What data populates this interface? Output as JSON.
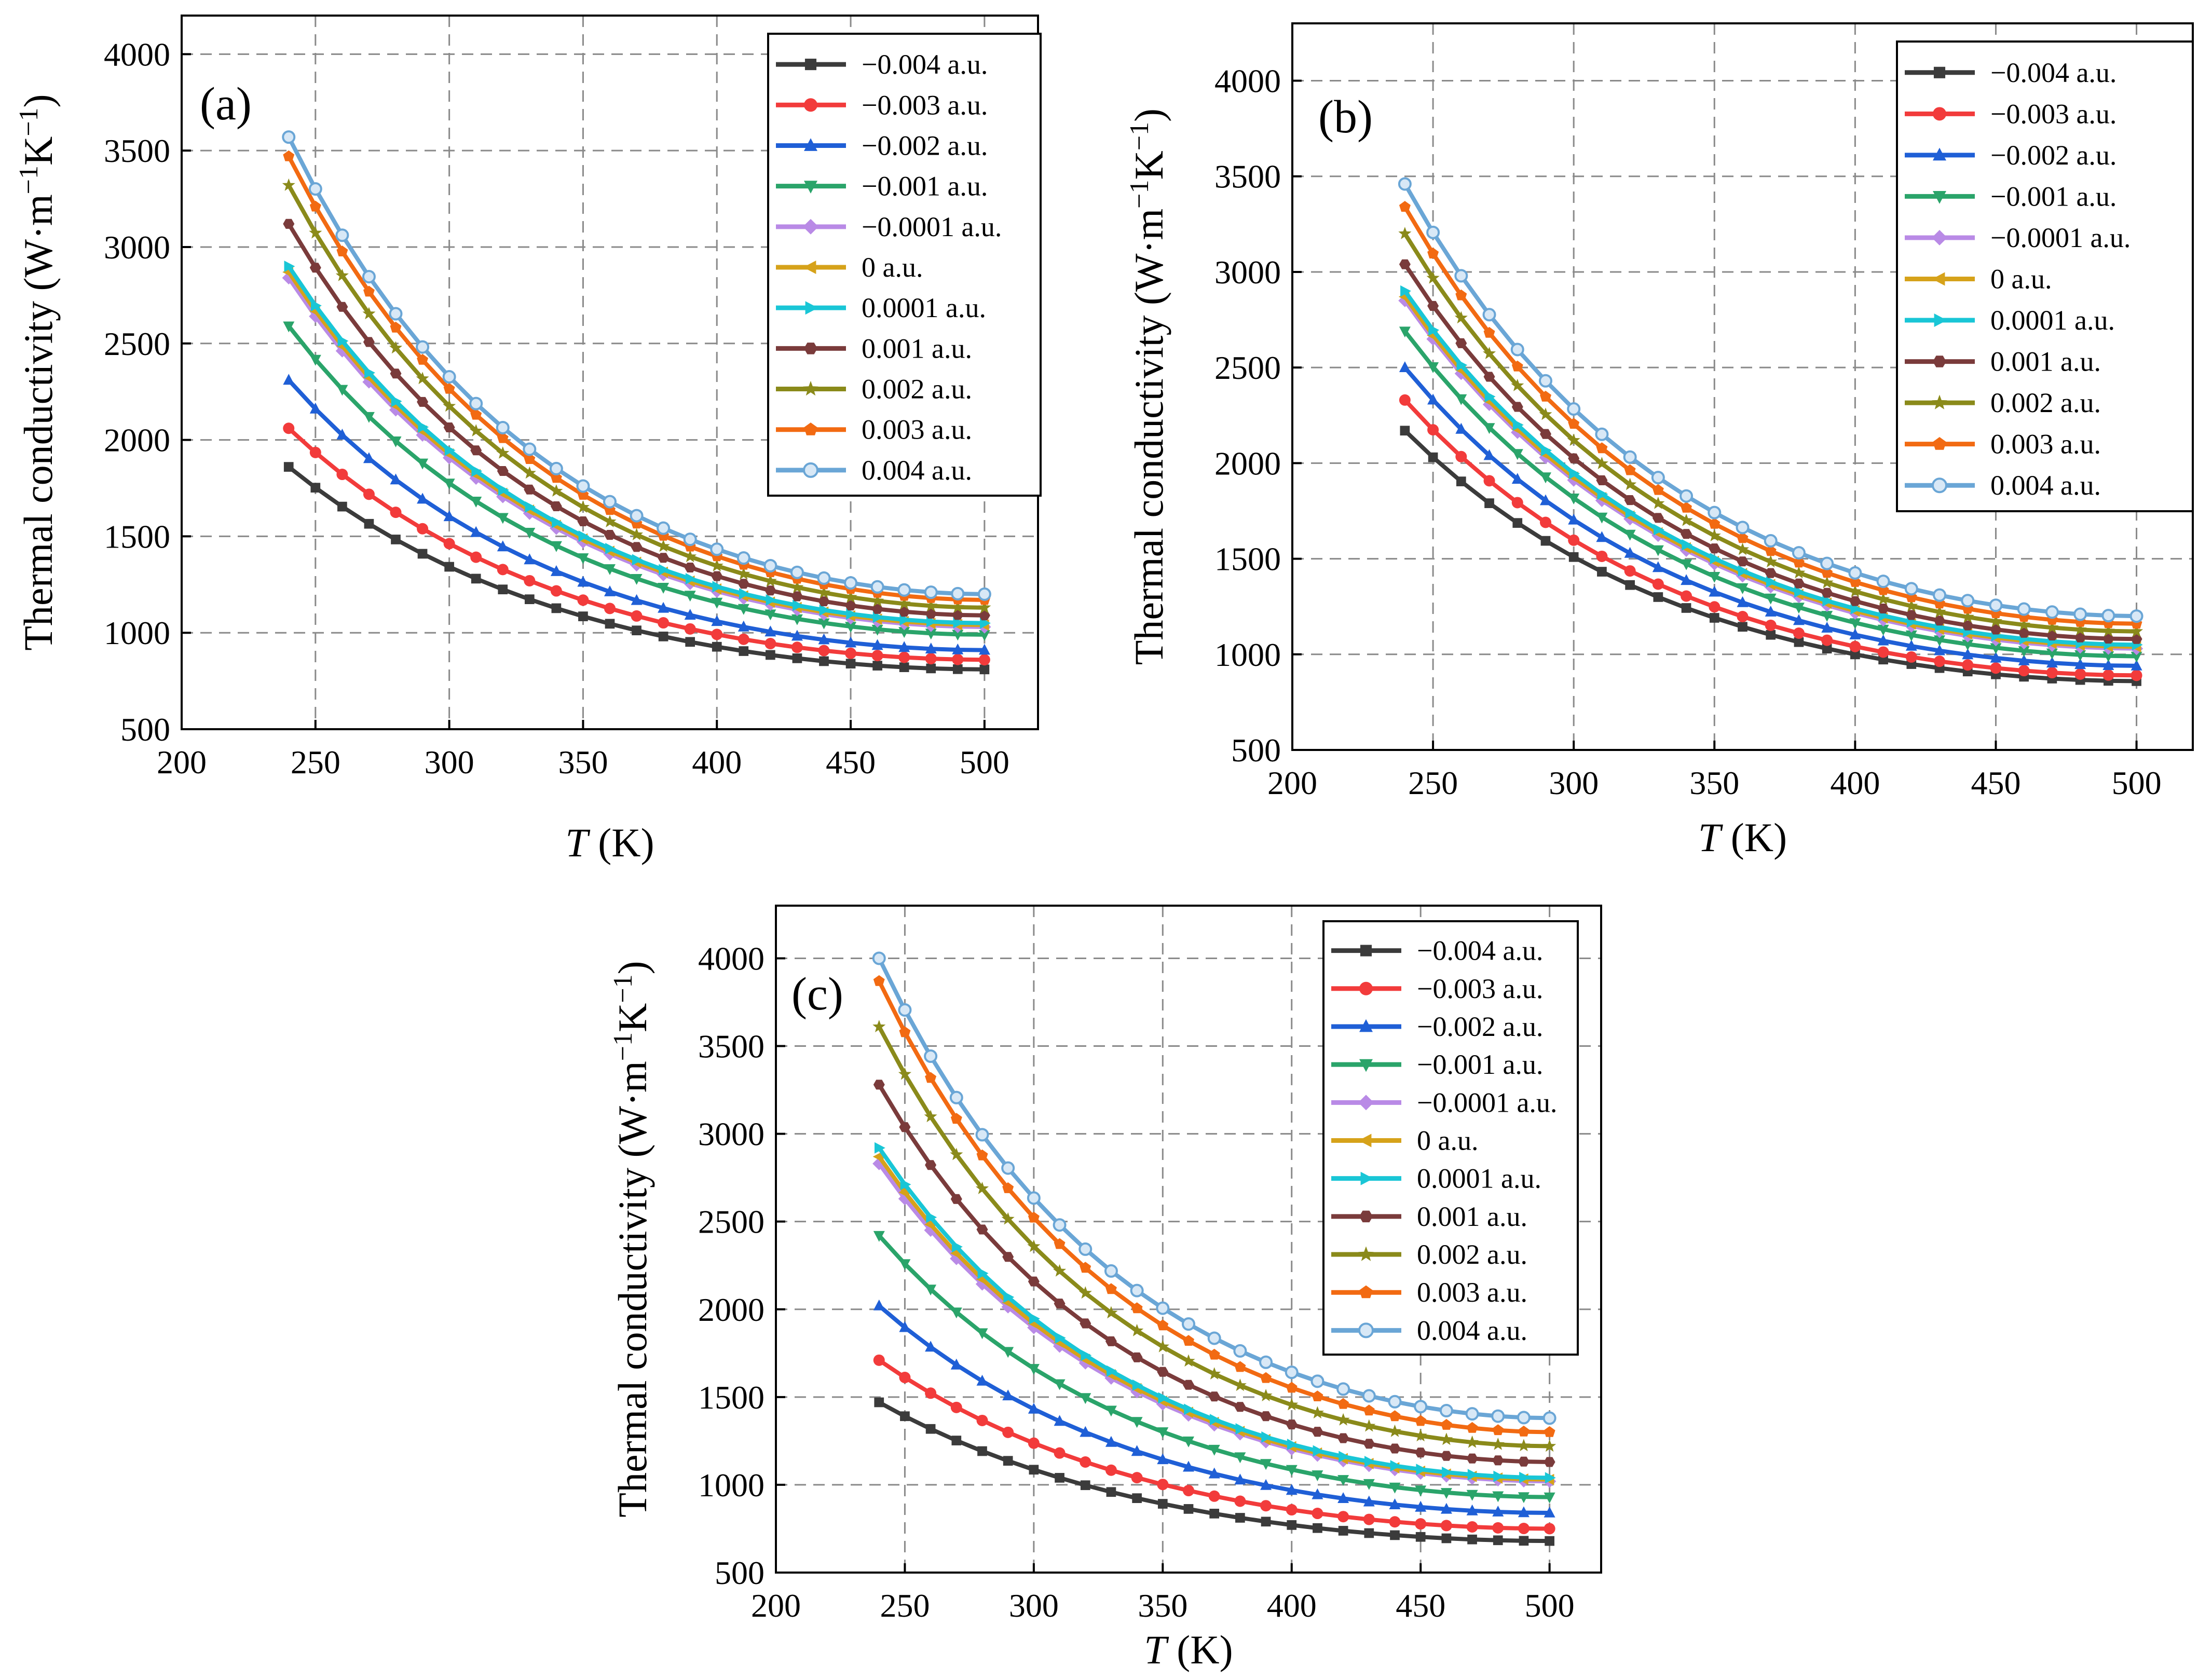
{
  "chart_data": [
    {
      "id": "a",
      "type": "line",
      "panel_label": "(a)",
      "xlabel": "T (K)",
      "xlabel_italic": "T",
      "xlabel_rest": " (K)",
      "ylabel": "Thermal conductivity (W·m⁻¹K⁻¹)",
      "ylabel_main": "Thermal conductivity (W·m",
      "ylabel_sup1": "−1",
      "ylabel_mid": "K",
      "ylabel_sup2": "−1",
      "ylabel_end": ")",
      "xlim": [
        200,
        520
      ],
      "ylim": [
        500,
        4200
      ],
      "xticks": [
        200,
        250,
        300,
        350,
        400,
        450,
        500
      ],
      "xtick_labels": [
        "200",
        "250",
        "300",
        "350",
        "400",
        "450",
        "500"
      ],
      "yticks": [
        500,
        1000,
        1500,
        2000,
        2500,
        3000,
        3500,
        4000
      ],
      "ytick_labels": [
        "500",
        "1000",
        "1500",
        "2000",
        "2500",
        "3000",
        "3500",
        "4000"
      ],
      "x_start": 240,
      "x_end": 500,
      "x_step": 10,
      "legend_position": "top-right",
      "series": [
        {
          "name": "−0.004 a.u.",
          "start": 1860,
          "end": 810
        },
        {
          "name": "−0.003 a.u.",
          "start": 2060,
          "end": 860
        },
        {
          "name": "−0.002 a.u.",
          "start": 2310,
          "end": 910
        },
        {
          "name": "−0.001 a.u.",
          "start": 2590,
          "end": 990
        },
        {
          "name": "−0.0001 a.u.",
          "start": 2840,
          "end": 1030
        },
        {
          "name": "0 a.u.",
          "start": 2870,
          "end": 1040
        },
        {
          "name": "0.0001 a.u.",
          "start": 2900,
          "end": 1050
        },
        {
          "name": "0.001 a.u.",
          "start": 3120,
          "end": 1090
        },
        {
          "name": "0.002 a.u.",
          "start": 3320,
          "end": 1130
        },
        {
          "name": "0.003 a.u.",
          "start": 3470,
          "end": 1170
        },
        {
          "name": "0.004 a.u.",
          "start": 3570,
          "end": 1200
        }
      ]
    },
    {
      "id": "b",
      "type": "line",
      "panel_label": "(b)",
      "xlabel": "T (K)",
      "xlabel_italic": "T",
      "xlabel_rest": " (K)",
      "ylabel": "Thermal conductivity (W·m⁻¹K⁻¹)",
      "ylabel_main": "Thermal conductivity (W·m",
      "ylabel_sup1": "−1",
      "ylabel_mid": "K",
      "ylabel_sup2": "−1",
      "ylabel_end": ")",
      "xlim": [
        200,
        520
      ],
      "ylim": [
        500,
        4300
      ],
      "xticks": [
        200,
        250,
        300,
        350,
        400,
        450,
        500
      ],
      "xtick_labels": [
        "200",
        "250",
        "300",
        "350",
        "400",
        "450",
        "500"
      ],
      "yticks": [
        500,
        1000,
        1500,
        2000,
        2500,
        3000,
        3500,
        4000
      ],
      "ytick_labels": [
        "500",
        "1000",
        "1500",
        "2000",
        "2500",
        "3000",
        "3500",
        "4000"
      ],
      "x_start": 240,
      "x_end": 500,
      "x_step": 10,
      "legend_position": "top-right",
      "series": [
        {
          "name": "−0.004 a.u.",
          "start": 2170,
          "end": 860
        },
        {
          "name": "−0.003 a.u.",
          "start": 2330,
          "end": 890
        },
        {
          "name": "−0.002 a.u.",
          "start": 2500,
          "end": 940
        },
        {
          "name": "−0.001 a.u.",
          "start": 2690,
          "end": 990
        },
        {
          "name": "−0.0001 a.u.",
          "start": 2850,
          "end": 1030
        },
        {
          "name": "0 a.u.",
          "start": 2870,
          "end": 1040
        },
        {
          "name": "0.0001 a.u.",
          "start": 2900,
          "end": 1050
        },
        {
          "name": "0.001 a.u.",
          "start": 3040,
          "end": 1080
        },
        {
          "name": "0.002 a.u.",
          "start": 3200,
          "end": 1120
        },
        {
          "name": "0.003 a.u.",
          "start": 3340,
          "end": 1160
        },
        {
          "name": "0.004 a.u.",
          "start": 3460,
          "end": 1200
        }
      ]
    },
    {
      "id": "c",
      "type": "line",
      "panel_label": "(c)",
      "xlabel": "T (K)",
      "xlabel_italic": "T",
      "xlabel_rest": " (K)",
      "ylabel": "Thermal conductivity (W·m⁻¹K⁻¹)",
      "ylabel_main": "Thermal conductivity (W·m",
      "ylabel_sup1": "−1",
      "ylabel_mid": "K",
      "ylabel_sup2": "−1",
      "ylabel_end": ")",
      "xlim": [
        200,
        520
      ],
      "ylim": [
        500,
        4300
      ],
      "xticks": [
        200,
        250,
        300,
        350,
        400,
        450,
        500
      ],
      "xtick_labels": [
        "200",
        "250",
        "300",
        "350",
        "400",
        "450",
        "500"
      ],
      "yticks": [
        500,
        1000,
        1500,
        2000,
        2500,
        3000,
        3500,
        4000
      ],
      "ytick_labels": [
        "500",
        "1000",
        "1500",
        "2000",
        "2500",
        "3000",
        "3500",
        "4000"
      ],
      "x_start": 240,
      "x_end": 500,
      "x_step": 10,
      "legend_position": "top-right",
      "series": [
        {
          "name": "−0.004 a.u.",
          "start": 1470,
          "end": 680
        },
        {
          "name": "−0.003 a.u.",
          "start": 1710,
          "end": 750
        },
        {
          "name": "−0.002 a.u.",
          "start": 2020,
          "end": 840
        },
        {
          "name": "−0.001 a.u.",
          "start": 2420,
          "end": 930
        },
        {
          "name": "−0.0001 a.u.",
          "start": 2830,
          "end": 1020
        },
        {
          "name": "0 a.u.",
          "start": 2870,
          "end": 1030
        },
        {
          "name": "0.0001 a.u.",
          "start": 2920,
          "end": 1040
        },
        {
          "name": "0.001 a.u.",
          "start": 3280,
          "end": 1130
        },
        {
          "name": "0.002 a.u.",
          "start": 3610,
          "end": 1220
        },
        {
          "name": "0.003 a.u.",
          "start": 3870,
          "end": 1300
        },
        {
          "name": "0.004 a.u.",
          "start": 4000,
          "end": 1380
        }
      ]
    }
  ],
  "series_styles": [
    {
      "color": "#3b3b3b",
      "marker": "square"
    },
    {
      "color": "#f23b3b",
      "marker": "circle"
    },
    {
      "color": "#1f5fd6",
      "marker": "triangle-up"
    },
    {
      "color": "#2aa46a",
      "marker": "triangle-down"
    },
    {
      "color": "#b98ae6",
      "marker": "diamond"
    },
    {
      "color": "#d6a21a",
      "marker": "triangle-left"
    },
    {
      "color": "#19c6d6",
      "marker": "triangle-right"
    },
    {
      "color": "#7a3b3b",
      "marker": "hexagon"
    },
    {
      "color": "#8a8a1a",
      "marker": "star"
    },
    {
      "color": "#f26a12",
      "marker": "pentagon"
    },
    {
      "color": "#6aa6d6",
      "marker": "circle-open"
    }
  ]
}
